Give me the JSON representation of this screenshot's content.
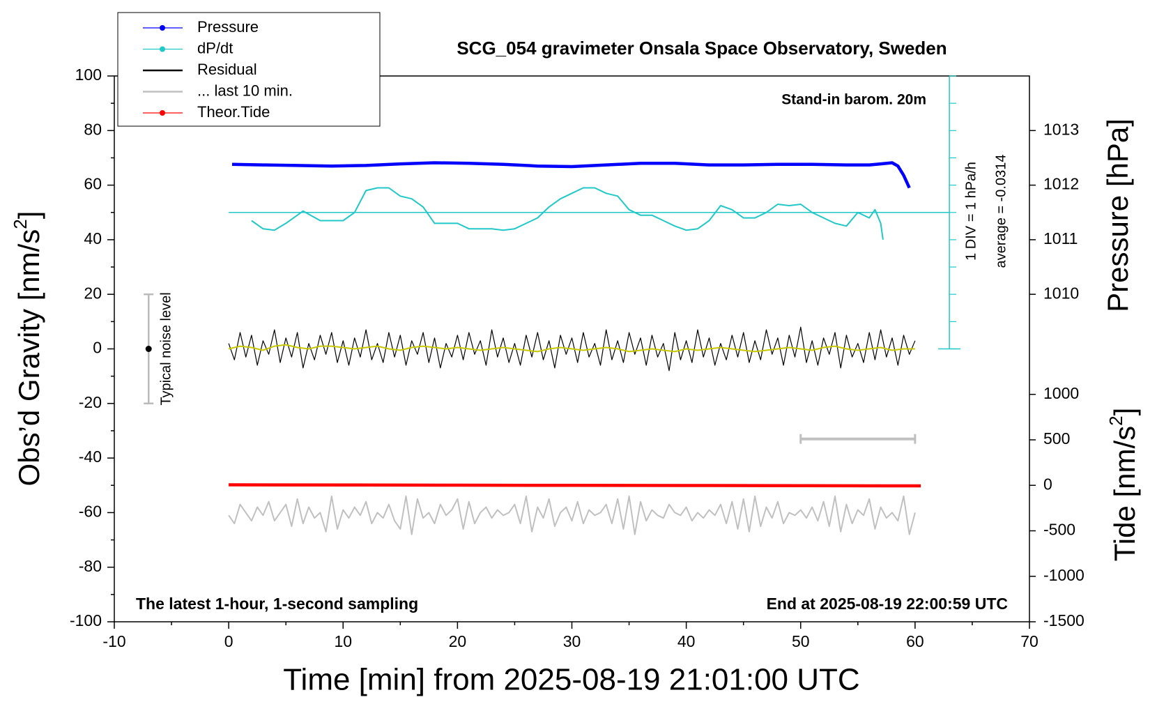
{
  "chart_data": {
    "type": "line",
    "title": "SCG_054 gravimeter Onsala Space Observatory, Sweden",
    "x_label": "Time [min] from 2025-08-19 21:01:00 UTC",
    "y_label": [
      "Obs’d Gravity [nm/s",
      "2",
      "]"
    ],
    "y2_label": "Pressure [hPa]",
    "y3_label": [
      "Tide [nm/s",
      "2",
      "]"
    ],
    "annotations": {
      "barometer": "Stand-in barom. 20m",
      "div": "1 DIV = 1 hPa/h",
      "average": "average = -0.0314",
      "noise": "Typical noise level",
      "sampling": "The latest 1-hour, 1-second sampling",
      "end": "End at 2025-08-19 22:00:59 UTC"
    },
    "xlim": [
      -10,
      70
    ],
    "xticks": [
      -10,
      0,
      10,
      20,
      30,
      40,
      50,
      60,
      70
    ],
    "ylim": [
      -100,
      100
    ],
    "yticks": [
      -100,
      -80,
      -60,
      -40,
      -20,
      0,
      20,
      40,
      60,
      80,
      100
    ],
    "y2lim": [
      1004,
      1014
    ],
    "y2ticks": [
      1010,
      1011,
      1012,
      1013
    ],
    "y3lim": [
      -1500,
      4500
    ],
    "y3ticks": [
      -1500,
      -1000,
      -500,
      0,
      500,
      1000
    ],
    "x": [
      0,
      0.5,
      1,
      1.5,
      2,
      2.5,
      3,
      3.5,
      4,
      4.5,
      5,
      5.5,
      6,
      6.5,
      7,
      7.5,
      8,
      8.5,
      9,
      9.5,
      10,
      10.5,
      11,
      11.5,
      12,
      12.5,
      13,
      13.5,
      14,
      14.5,
      15,
      15.5,
      16,
      16.5,
      17,
      17.5,
      18,
      18.5,
      19,
      19.5,
      20,
      20.5,
      21,
      21.5,
      22,
      22.5,
      23,
      23.5,
      24,
      24.5,
      25,
      25.5,
      26,
      26.5,
      27,
      27.5,
      28,
      28.5,
      29,
      29.5,
      30,
      30.5,
      31,
      31.5,
      32,
      32.5,
      33,
      33.5,
      34,
      34.5,
      35,
      35.5,
      36,
      36.5,
      37,
      37.5,
      38,
      38.5,
      39,
      39.5,
      40,
      40.5,
      41,
      41.5,
      42,
      42.5,
      43,
      43.5,
      44,
      44.5,
      45,
      45.5,
      46,
      46.5,
      47,
      47.5,
      48,
      48.5,
      49,
      49.5,
      50,
      50.5,
      51,
      51.5,
      52,
      52.5,
      53,
      53.5,
      54,
      54.5,
      55,
      55.5,
      56,
      56.5,
      57,
      57.5,
      58,
      58.5,
      59,
      59.5,
      60
    ],
    "series": [
      {
        "name": "Pressure",
        "color": "#0000ff",
        "axis": "y2",
        "marker": true,
        "x": [
          0.3,
          3,
          6,
          9,
          12,
          15,
          18,
          21,
          24,
          27,
          30,
          33,
          36,
          39,
          42,
          45,
          48,
          51,
          54,
          56,
          57,
          58,
          58.5,
          59,
          59.5
        ],
        "values": [
          1012.38,
          1012.37,
          1012.36,
          1012.35,
          1012.36,
          1012.39,
          1012.41,
          1012.4,
          1012.38,
          1012.35,
          1012.34,
          1012.37,
          1012.4,
          1012.4,
          1012.37,
          1012.37,
          1012.38,
          1012.38,
          1012.37,
          1012.37,
          1012.39,
          1012.41,
          1012.35,
          1012.18,
          1011.95
        ]
      },
      {
        "name": "dP/dt",
        "color": "#20c8c8",
        "axis": "y",
        "marker": true,
        "x": [
          2,
          3,
          4,
          5,
          6.5,
          8,
          10,
          11,
          12,
          13,
          14,
          15,
          16,
          17,
          18,
          19,
          20,
          21,
          22,
          23,
          24,
          25,
          26,
          27,
          28,
          29,
          30,
          31,
          32,
          33,
          34,
          35,
          36,
          37,
          38,
          39,
          40,
          41,
          42,
          43,
          44,
          45,
          46,
          47,
          48,
          49,
          50,
          51,
          52,
          53,
          54,
          55,
          56,
          56.5,
          57,
          57.2
        ],
        "values": [
          47,
          44,
          43.5,
          46,
          50.5,
          47,
          47,
          50,
          58,
          59,
          59,
          56,
          55,
          52,
          46,
          46,
          46,
          44,
          44,
          44,
          43.5,
          44,
          46,
          48,
          52,
          55,
          57,
          59,
          59,
          57,
          56,
          51,
          49,
          49,
          47,
          45,
          43.5,
          44,
          47,
          52.5,
          51,
          48,
          48,
          50,
          53,
          52.5,
          53,
          50,
          48,
          46,
          45,
          50,
          48,
          51,
          46,
          40
        ]
      },
      {
        "name": "Residual",
        "color": "#000000",
        "axis": "y",
        "values": [
          2,
          -4,
          6,
          -3,
          5,
          -6,
          3,
          -2,
          7,
          -5,
          4,
          -3,
          6,
          -7,
          2,
          -4,
          5,
          -2,
          6,
          -5,
          3,
          -6,
          4,
          -3,
          7,
          -4,
          2,
          -5,
          6,
          -3,
          5,
          -6,
          3,
          -2,
          6,
          -5,
          4,
          -7,
          2,
          -3,
          5,
          -4,
          6,
          -2,
          3,
          -6,
          7,
          -3,
          4,
          -5,
          2,
          -6,
          5,
          -3,
          6,
          -4,
          3,
          -7,
          5,
          -2,
          4,
          -5,
          6,
          -3,
          2,
          -6,
          7,
          -4,
          3,
          -5,
          6,
          -2,
          4,
          -6,
          5,
          -3,
          2,
          -8,
          6,
          -4,
          3,
          -5,
          7,
          -3,
          4,
          -6,
          2,
          -4,
          5,
          -3,
          6,
          -5,
          3,
          -4,
          7,
          -2,
          4,
          -6,
          5,
          -3,
          8,
          -5,
          3,
          -6,
          4,
          -2,
          6,
          -7,
          5,
          -3,
          2,
          -5,
          6,
          -4,
          7,
          -3,
          4,
          -6,
          5,
          -2,
          3
        ]
      },
      {
        "color": "#c8c800",
        "axis": "y",
        "x": [
          0,
          1,
          2,
          3,
          4,
          5,
          6,
          7,
          8,
          9,
          10,
          11,
          12,
          13,
          14,
          15,
          16,
          17,
          18,
          19,
          20,
          21,
          22,
          23,
          24,
          25,
          26,
          27,
          28,
          29,
          30,
          31,
          32,
          33,
          34,
          35,
          36,
          37,
          38,
          39,
          40,
          41,
          42,
          43,
          44,
          45,
          46,
          47,
          48,
          49,
          50,
          51,
          52,
          53,
          54,
          55,
          56,
          57,
          58,
          59,
          60
        ],
        "values": [
          0,
          1,
          0.5,
          -0.5,
          1,
          1.5,
          0.5,
          0,
          1,
          1,
          0.5,
          0,
          0.5,
          1,
          0,
          -0.5,
          0.5,
          1,
          0.5,
          0,
          0.5,
          0,
          -0.5,
          0,
          0.5,
          0,
          -0.5,
          -1,
          0,
          0.5,
          0,
          -0.5,
          0,
          0.5,
          0,
          -1,
          -0.5,
          0,
          -0.5,
          -1,
          0,
          -0.5,
          0,
          0.5,
          0,
          -0.5,
          -1,
          -0.5,
          0,
          0.5,
          0,
          -0.5,
          0.5,
          1,
          0,
          -0.5,
          0,
          0.5,
          -0.5,
          0,
          0
        ]
      },
      {
        "name": "... last 10 min.",
        "color": "#c0c0c0",
        "axis": "y",
        "values": [
          -61,
          -64,
          -57,
          -60,
          -63,
          -58,
          -61,
          -56,
          -63,
          -60,
          -57,
          -65,
          -55,
          -64,
          -58,
          -62,
          -60,
          -67,
          -54,
          -66,
          -59,
          -62,
          -58,
          -61,
          -56,
          -64,
          -60,
          -62,
          -57,
          -63,
          -66,
          -54,
          -68,
          -55,
          -62,
          -60,
          -64,
          -57,
          -61,
          -59,
          -55,
          -66,
          -56,
          -64,
          -60,
          -58,
          -62,
          -59,
          -61,
          -60,
          -57,
          -64,
          -54,
          -67,
          -58,
          -62,
          -55,
          -65,
          -60,
          -58,
          -63,
          -56,
          -64,
          -59,
          -61,
          -60,
          -57,
          -64,
          -55,
          -66,
          -54,
          -68,
          -56,
          -63,
          -59,
          -61,
          -62,
          -57,
          -60,
          -61,
          -58,
          -63,
          -60,
          -62,
          -59,
          -61,
          -57,
          -64,
          -56,
          -66,
          -55,
          -67,
          -54,
          -65,
          -58,
          -62,
          -56,
          -64,
          -60,
          -61,
          -59,
          -62,
          -58,
          -63,
          -56,
          -65,
          -54,
          -67,
          -57,
          -64,
          -59,
          -61,
          -55,
          -66,
          -58,
          -62,
          -60,
          -63,
          -54,
          -68,
          -60
        ]
      },
      {
        "name": "Theor.Tide",
        "color": "#ff0000",
        "axis": "y3",
        "marker": true,
        "x": [
          0,
          10,
          20,
          30,
          40,
          50,
          60.5
        ],
        "values": [
          6,
          4,
          2,
          0,
          -2,
          -4,
          -6
        ]
      }
    ],
    "dpdt_axis": {
      "x": 63,
      "center": 50,
      "ylim": [
        0,
        100
      ],
      "ticks": [
        0,
        10,
        20,
        30,
        40,
        50,
        60,
        70,
        80,
        90,
        100
      ]
    },
    "noise_level": {
      "x": -7,
      "value": 0,
      "error": 20
    },
    "scale_bar": {
      "x": [
        50,
        60
      ],
      "y": -33
    }
  }
}
